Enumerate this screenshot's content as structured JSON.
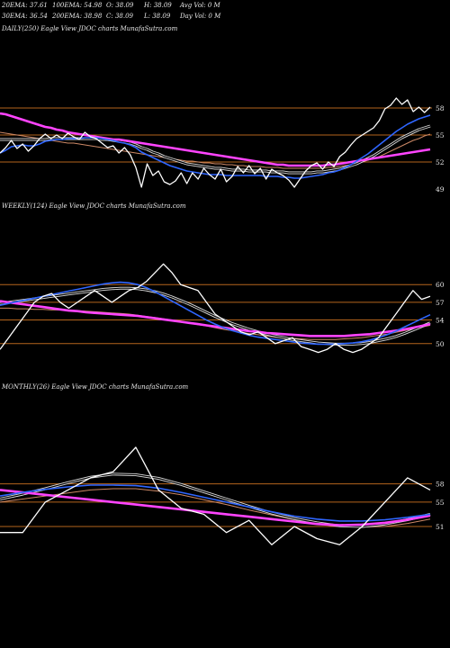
{
  "header": {
    "row1": [
      "20EMA: 37.61",
      "100EMA: 54.98",
      "O: 38.09",
      "H: 38.09",
      "Avg Vol: 0  M"
    ],
    "row2": [
      "30EMA: 36.54",
      "200EMA: 38.98",
      "C: 38.09",
      "L: 38.09",
      "Day Vol: 0  M"
    ]
  },
  "chart_data": [
    {
      "type": "line",
      "panel": "daily",
      "title": "DAILY(250) Eagle   View  JDOC charts MunafaSutra.com",
      "yticks": [
        "58",
        "55",
        "52",
        "49"
      ],
      "ylim": [
        48,
        60
      ],
      "levels": [
        58,
        55,
        52
      ],
      "series": [
        {
          "role": "price",
          "color": "#ffffff",
          "values": [
            53,
            53.6,
            54.4,
            53.5,
            54,
            53.2,
            53.8,
            54.6,
            55.1,
            54.6,
            55,
            54.6,
            55.2,
            54.8,
            54.5,
            55.3,
            54.8,
            54.6,
            54.1,
            53.6,
            53.8,
            53,
            53.6,
            52.8,
            51.4,
            49.2,
            51.8,
            50.5,
            51,
            49.8,
            49.5,
            49.9,
            50.8,
            49.6,
            50.8,
            50.1,
            51.3,
            50.6,
            50.1,
            51.2,
            49.8,
            50.4,
            51.5,
            50.8,
            51.6,
            50.7,
            51.3,
            50.1,
            51.2,
            50.8,
            50.5,
            50,
            49.2,
            50.1,
            51,
            51.6,
            51.9,
            51.2,
            52,
            51.5,
            52.6,
            53.1,
            53.9,
            54.6,
            55,
            55.4,
            55.8,
            56.6,
            57.9,
            58.3,
            59.1,
            58.4,
            58.9,
            57.6,
            58.1,
            57.5,
            58.1
          ]
        },
        {
          "role": "ema20",
          "color": "#2f66ff",
          "values": [
            53,
            53.3,
            53.7,
            53.8,
            53.9,
            53.8,
            53.8,
            54,
            54.3,
            54.4,
            54.5,
            54.5,
            54.6,
            54.6,
            54.6,
            54.7,
            54.7,
            54.7,
            54.6,
            54.5,
            54.4,
            54.2,
            54.1,
            53.9,
            53.6,
            53.1,
            52.8,
            52.5,
            52.2,
            51.9,
            51.6,
            51.4,
            51.2,
            51,
            50.9,
            50.8,
            50.7,
            50.6,
            50.6,
            50.6,
            50.5,
            50.5,
            50.5,
            50.5,
            50.5,
            50.5,
            50.5,
            50.4,
            50.4,
            50.4,
            50.3,
            50.3,
            50.2,
            50.2,
            50.3,
            50.4,
            50.5,
            50.6,
            50.8,
            50.9,
            51.1,
            51.4,
            51.7,
            52.1,
            52.5,
            52.9,
            53.4,
            53.9,
            54.4,
            54.9,
            55.4,
            55.8,
            56.2,
            56.5,
            56.8,
            57,
            57.2
          ]
        },
        {
          "role": "ema30",
          "color": "#dddddd",
          "values": [
            54.5,
            54.5,
            54.5,
            54.5,
            54.5,
            54.5,
            54.5,
            54.5,
            54.5,
            54.6,
            54.6,
            54.6,
            54.6,
            54.6,
            54.6,
            54.6,
            54.6,
            54.6,
            54.5,
            54.5,
            54.4,
            54.3,
            54.2,
            54.1,
            53.9,
            53.6,
            53.4,
            53.1,
            52.9,
            52.6,
            52.4,
            52.2,
            52,
            51.8,
            51.7,
            51.6,
            51.5,
            51.4,
            51.3,
            51.3,
            51.2,
            51.1,
            51.1,
            51.1,
            51,
            51,
            51,
            51,
            50.9,
            50.9,
            50.9,
            50.8,
            50.8,
            50.8,
            50.8,
            50.8,
            50.9,
            50.9,
            51,
            51.1,
            51.2,
            51.4,
            51.6,
            51.8,
            52.1,
            52.4,
            52.7,
            53.1,
            53.5,
            53.9,
            54.3,
            54.7,
            55,
            55.3,
            55.6,
            55.8,
            56
          ]
        },
        {
          "role": "ema100",
          "color": "#cc8866",
          "values": [
            55.3,
            55.2,
            55.1,
            55,
            54.9,
            54.8,
            54.7,
            54.6,
            54.5,
            54.4,
            54.3,
            54.2,
            54.1,
            54.1,
            54,
            53.9,
            53.8,
            53.7,
            53.6,
            53.5,
            53.4,
            53.3,
            53.2,
            53.1,
            53,
            52.9,
            52.8,
            52.7,
            52.6,
            52.5,
            52.4,
            52.3,
            52.2,
            52.1,
            52.1,
            52,
            51.9,
            51.9,
            51.8,
            51.8,
            51.7,
            51.7,
            51.6,
            51.6,
            51.5,
            51.5,
            51.5,
            51.4,
            51.4,
            51.4,
            51.3,
            51.3,
            51.3,
            51.3,
            51.3,
            51.3,
            51.3,
            51.3,
            51.4,
            51.4,
            51.5,
            51.6,
            51.7,
            51.8,
            52,
            52.2,
            52.4,
            52.6,
            52.9,
            53.2,
            53.5,
            53.8,
            54.1,
            54.4,
            54.6,
            54.9,
            55.1
          ]
        },
        {
          "role": "ema200",
          "color": "#ff44ff",
          "values": [
            57.4,
            57.3,
            57.1,
            56.9,
            56.7,
            56.5,
            56.3,
            56.1,
            55.9,
            55.8,
            55.6,
            55.5,
            55.3,
            55.2,
            55.1,
            55,
            54.9,
            54.8,
            54.7,
            54.6,
            54.5,
            54.5,
            54.4,
            54.3,
            54.2,
            54.1,
            54,
            53.9,
            53.8,
            53.7,
            53.6,
            53.5,
            53.4,
            53.3,
            53.2,
            53.1,
            53,
            52.9,
            52.8,
            52.7,
            52.6,
            52.5,
            52.4,
            52.3,
            52.2,
            52.1,
            52,
            51.9,
            51.8,
            51.7,
            51.7,
            51.6,
            51.6,
            51.6,
            51.6,
            51.6,
            51.6,
            51.6,
            51.7,
            51.7,
            51.8,
            51.9,
            52,
            52.1,
            52.2,
            52.3,
            52.4,
            52.5,
            52.6,
            52.7,
            52.8,
            52.9,
            53,
            53.1,
            53.2,
            53.3,
            53.4
          ]
        }
      ]
    },
    {
      "type": "line",
      "panel": "weekly",
      "title": "WEEKLY(124) Eagle   View  JDOC charts MunafaSutra.com",
      "yticks": [
        "60",
        "57",
        "54",
        "50"
      ],
      "ylim": [
        46,
        64
      ],
      "levels": [
        60,
        57,
        54,
        50
      ],
      "series": [
        {
          "role": "price",
          "color": "#ffffff",
          "values": [
            49,
            51,
            53,
            55,
            57,
            58,
            58.5,
            57,
            56,
            57,
            58,
            59,
            58,
            57,
            58,
            59,
            59.5,
            60.5,
            62,
            63.5,
            62,
            60,
            59.5,
            59,
            57,
            55,
            54,
            53,
            52,
            51.5,
            52,
            51,
            50,
            50.5,
            51,
            49.5,
            49,
            48.5,
            49,
            50,
            49,
            48.5,
            49,
            50,
            51,
            53,
            55,
            57,
            59,
            57.5,
            58
          ]
        },
        {
          "role": "ema20",
          "color": "#2f66ff",
          "values": [
            56.5,
            56.8,
            57.1,
            57.4,
            57.7,
            58,
            58.3,
            58.6,
            58.9,
            59.2,
            59.5,
            59.8,
            60.1,
            60.3,
            60.4,
            60.3,
            60,
            59.5,
            58.8,
            58,
            57.2,
            56.4,
            55.6,
            54.8,
            54,
            53.3,
            52.7,
            52.2,
            51.8,
            51.4,
            51.1,
            50.9,
            50.7,
            50.5,
            50.3,
            50.1,
            50,
            49.9,
            49.9,
            49.9,
            50,
            50.1,
            50.3,
            50.6,
            51,
            51.5,
            52.1,
            52.8,
            53.5,
            54.2,
            54.9
          ]
        },
        {
          "role": "ema30",
          "color": "#dddddd",
          "values": [
            56.8,
            57,
            57.2,
            57.4,
            57.6,
            57.8,
            58,
            58.2,
            58.4,
            58.6,
            58.8,
            59,
            59.2,
            59.3,
            59.4,
            59.4,
            59.3,
            59.1,
            58.8,
            58.4,
            57.9,
            57.3,
            56.7,
            56,
            55.3,
            54.6,
            54,
            53.4,
            52.9,
            52.4,
            52,
            51.6,
            51.3,
            51,
            50.7,
            50.5,
            50.3,
            50.1,
            50,
            49.9,
            49.9,
            49.9,
            50,
            50.2,
            50.5,
            50.8,
            51.2,
            51.7,
            52.3,
            52.9,
            53.5
          ]
        },
        {
          "role": "ema100",
          "color": "#cc8866",
          "values": [
            56,
            56,
            55.9,
            55.9,
            55.8,
            55.8,
            55.7,
            55.7,
            55.6,
            55.6,
            55.5,
            55.4,
            55.3,
            55.2,
            55.1,
            55,
            54.8,
            54.6,
            54.4,
            54.2,
            54,
            53.8,
            53.5,
            53.2,
            53,
            52.7,
            52.4,
            52.2,
            51.9,
            51.7,
            51.5,
            51.3,
            51.1,
            51,
            50.9,
            50.8,
            50.7,
            50.7,
            50.7,
            50.7,
            50.8,
            50.9,
            51,
            51.2,
            51.4,
            51.6,
            51.9,
            52.2,
            52.5,
            52.8,
            53.1
          ]
        },
        {
          "role": "ema200",
          "color": "#ff44ff",
          "values": [
            57.2,
            57,
            56.8,
            56.6,
            56.4,
            56.2,
            56,
            55.8,
            55.6,
            55.5,
            55.3,
            55.2,
            55.1,
            55,
            54.9,
            54.8,
            54.7,
            54.5,
            54.3,
            54.1,
            53.9,
            53.7,
            53.5,
            53.3,
            53.1,
            52.9,
            52.7,
            52.5,
            52.3,
            52.1,
            52,
            51.8,
            51.7,
            51.6,
            51.5,
            51.4,
            51.3,
            51.3,
            51.3,
            51.3,
            51.3,
            51.4,
            51.5,
            51.6,
            51.8,
            52,
            52.2,
            52.4,
            52.7,
            53,
            53.3
          ]
        }
      ]
    },
    {
      "type": "line",
      "panel": "monthly",
      "title": "MONTHLY(26) Eagle   View  JDOC charts MunafaSutra.com",
      "yticks": [
        "58",
        "55",
        "51"
      ],
      "ylim": [
        47,
        68
      ],
      "levels": [
        58,
        55,
        51
      ],
      "series": [
        {
          "role": "price",
          "color": "#ffffff",
          "values": [
            50,
            50,
            55,
            57,
            59,
            60,
            64,
            57,
            54,
            53,
            50,
            52,
            48,
            51,
            49,
            48,
            51,
            55,
            59,
            57
          ]
        },
        {
          "role": "ema20",
          "color": "#2f66ff",
          "values": [
            56,
            56.6,
            57.1,
            57.5,
            57.8,
            57.8,
            57.7,
            57.3,
            56.6,
            55.8,
            55,
            54.2,
            53.4,
            52.7,
            52.2,
            51.9,
            51.9,
            52.1,
            52.5,
            53
          ]
        },
        {
          "role": "ema30",
          "color": "#dddddd",
          "values": [
            55.5,
            56.3,
            57.2,
            58.2,
            59.1,
            59.6,
            59.5,
            58.9,
            57.9,
            56.7,
            55.5,
            54.3,
            53.2,
            52.3,
            51.6,
            51.1,
            51,
            51.4,
            52.1,
            53
          ]
        },
        {
          "role": "ema100",
          "color": "#cc8866",
          "values": [
            55,
            55.5,
            56,
            56.5,
            57,
            57.2,
            57.2,
            56.8,
            56.2,
            55.4,
            54.6,
            53.7,
            52.9,
            52.1,
            51.5,
            51.1,
            50.9,
            51,
            51.5,
            52.2
          ]
        },
        {
          "role": "ema200",
          "color": "#ff44ff",
          "values": [
            57,
            56.6,
            56.2,
            55.8,
            55.4,
            55,
            54.6,
            54.2,
            53.8,
            53.4,
            53,
            52.6,
            52.2,
            51.8,
            51.4,
            51.2,
            51.3,
            51.6,
            52.1,
            52.8
          ]
        }
      ]
    }
  ]
}
